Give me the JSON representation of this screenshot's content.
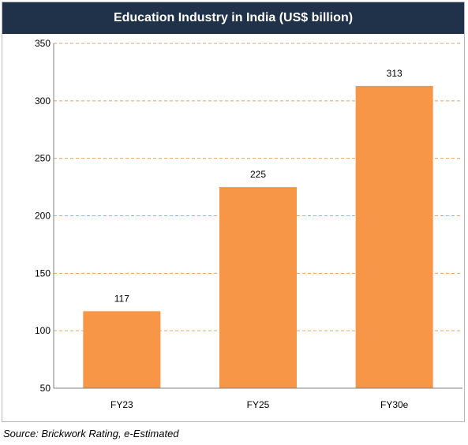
{
  "source_note": "Source: Brickwork Rating, e-Estimated",
  "colors": {
    "title_bg": "#1f3249",
    "bar": "#f79646",
    "grid": "#e8a060"
  },
  "chart_data": {
    "type": "bar",
    "title": "Education Industry in India (US$ billion)",
    "categories": [
      "FY23",
      "FY25",
      "FY30e"
    ],
    "values": [
      117,
      225,
      313
    ],
    "data_labels": [
      "117",
      "225",
      "313"
    ],
    "xlabel": "",
    "ylabel": "",
    "ylim": [
      50,
      350
    ],
    "yticks": [
      50,
      100,
      150,
      200,
      250,
      300,
      350
    ],
    "grid": "horizontal-dashed",
    "legend": "none"
  }
}
